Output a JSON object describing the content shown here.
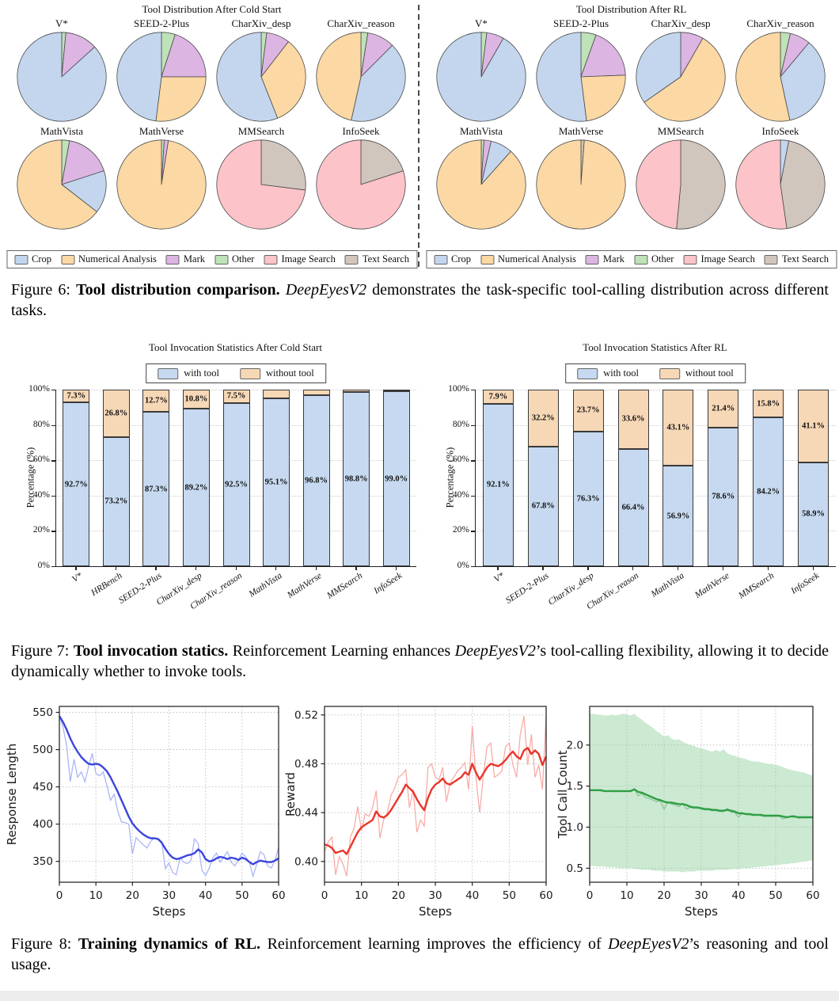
{
  "figure6": {
    "tool_colors": {
      "Crop": "#c3d6ee",
      "Numerical Analysis": "#fbd8a4",
      "Mark": "#dcb5e2",
      "Other": "#bfe2b9",
      "Image Search": "#fcc3c9",
      "Text Search": "#d0c6be"
    },
    "legend": [
      "Crop",
      "Numerical Analysis",
      "Mark",
      "Other",
      "Image Search",
      "Text Search"
    ],
    "panels": [
      {
        "title": "Tool Distribution After Cold Start",
        "pies": [
          {
            "name": "V*",
            "slices": [
              [
                "Other",
                1.5
              ],
              [
                "Mark",
                11.8
              ],
              [
                "Crop",
                86.7
              ]
            ]
          },
          {
            "name": "SEED-2-Plus",
            "slices": [
              [
                "Other",
                5
              ],
              [
                "Mark",
                20
              ],
              [
                "Numerical Analysis",
                27
              ],
              [
                "Crop",
                48
              ]
            ]
          },
          {
            "name": "CharXiv_desp",
            "slices": [
              [
                "Other",
                2
              ],
              [
                "Mark",
                8.5
              ],
              [
                "Numerical Analysis",
                33.5
              ],
              [
                "Crop",
                56
              ]
            ]
          },
          {
            "name": "CharXiv_reason",
            "slices": [
              [
                "Other",
                2.5
              ],
              [
                "Mark",
                10
              ],
              [
                "Crop",
                41
              ],
              [
                "Numerical Analysis",
                46.5
              ]
            ]
          },
          {
            "name": "MathVista",
            "slices": [
              [
                "Other",
                2.8
              ],
              [
                "Mark",
                17.2
              ],
              [
                "Crop",
                15.5
              ],
              [
                "Numerical Analysis",
                64.5
              ]
            ]
          },
          {
            "name": "MathVerse",
            "slices": [
              [
                "Other",
                1
              ],
              [
                "Mark",
                1.5
              ],
              [
                "Numerical Analysis",
                97.5
              ]
            ]
          },
          {
            "name": "MMSearch",
            "slices": [
              [
                "Text Search",
                27
              ],
              [
                "Image Search",
                73
              ]
            ]
          },
          {
            "name": "InfoSeek",
            "slices": [
              [
                "Text Search",
                20
              ],
              [
                "Image Search",
                80
              ]
            ]
          }
        ]
      },
      {
        "title": "Tool Distribution After RL",
        "pies": [
          {
            "name": "V*",
            "slices": [
              [
                "Other",
                2
              ],
              [
                "Mark",
                6.3
              ],
              [
                "Crop",
                91.7
              ]
            ]
          },
          {
            "name": "SEED-2-Plus",
            "slices": [
              [
                "Other",
                5.5
              ],
              [
                "Mark",
                18.9
              ],
              [
                "Numerical Analysis",
                23.6
              ],
              [
                "Crop",
                52
              ]
            ]
          },
          {
            "name": "CharXiv_desp",
            "slices": [
              [
                "Mark",
                8.3
              ],
              [
                "Numerical Analysis",
                57
              ],
              [
                "Crop",
                34.7
              ]
            ]
          },
          {
            "name": "CharXiv_reason",
            "slices": [
              [
                "Other",
                3.6
              ],
              [
                "Mark",
                7.5
              ],
              [
                "Crop",
                35.5
              ],
              [
                "Numerical Analysis",
                53.4
              ]
            ]
          },
          {
            "name": "MathVista",
            "slices": [
              [
                "Other",
                1
              ],
              [
                "Mark",
                2.6
              ],
              [
                "Crop",
                8
              ],
              [
                "Numerical Analysis",
                88.4
              ]
            ]
          },
          {
            "name": "MathVerse",
            "slices": [
              [
                "Text Search",
                1.2
              ],
              [
                "Numerical Analysis",
                98.8
              ]
            ]
          },
          {
            "name": "MMSearch",
            "slices": [
              [
                "Text Search",
                51.5
              ],
              [
                "Image Search",
                48.5
              ]
            ]
          },
          {
            "name": "InfoSeek",
            "slices": [
              [
                "Crop",
                3
              ],
              [
                "Text Search",
                44.7
              ],
              [
                "Image Search",
                52.3
              ]
            ]
          }
        ]
      }
    ]
  },
  "caption6": {
    "parts": [
      {
        "t": "Figure 6: "
      },
      {
        "t": "Tool distribution comparison. ",
        "s": "b"
      },
      {
        "t": "DeepEyesV2",
        "s": "i"
      },
      {
        "t": " demonstrates the task-specific tool-calling distribution across different tasks."
      }
    ]
  },
  "figure7": {
    "ylabel": "Percentage (%)",
    "yticks": [
      "0%",
      "20%",
      "40%",
      "60%",
      "80%",
      "100%"
    ],
    "ytick_values": [
      0,
      20,
      40,
      60,
      80,
      100
    ],
    "legend": [
      {
        "label": "with tool",
        "color": "#c6d9f0"
      },
      {
        "label": "without tool",
        "color": "#f6d7b6"
      }
    ],
    "charts": [
      {
        "title": "Tool Invocation Statistics After Cold Start",
        "categories": [
          "V*",
          "HRBench",
          "SEED-2-Plus",
          "CharXiv_desp",
          "CharXiv_reason",
          "MathVista",
          "MathVerse",
          "MMSearch",
          "InfoSeek"
        ],
        "with_tool": [
          92.7,
          73.2,
          87.3,
          89.2,
          92.5,
          95.1,
          96.8,
          98.8,
          99.0
        ],
        "without_tool": [
          7.3,
          26.8,
          12.7,
          10.8,
          7.5,
          4.9,
          3.2,
          1.2,
          1.0
        ],
        "with_labels": [
          "92.7%",
          "73.2%",
          "87.3%",
          "89.2%",
          "92.5%",
          "95.1%",
          "96.8%",
          "98.8%",
          "99.0%"
        ],
        "without_labels": [
          "7.3%",
          "26.8%",
          "12.7%",
          "10.8%",
          "7.5%",
          "",
          "",
          "",
          ""
        ]
      },
      {
        "title": "Tool Invocation Statistics After RL",
        "categories": [
          "V*",
          "SEED-2-Plus",
          "CharXiv_desp",
          "CharXiv_reason",
          "MathVista",
          "MathVerse",
          "MMSearch",
          "InfoSeek"
        ],
        "with_tool": [
          92.1,
          67.8,
          76.3,
          66.4,
          56.9,
          78.6,
          84.2,
          58.9
        ],
        "without_tool": [
          7.9,
          32.2,
          23.7,
          33.6,
          43.1,
          21.4,
          15.8,
          41.1
        ],
        "with_labels": [
          "92.1%",
          "67.8%",
          "76.3%",
          "66.4%",
          "56.9%",
          "78.6%",
          "84.2%",
          "58.9%"
        ],
        "without_labels": [
          "7.9%",
          "32.2%",
          "23.7%",
          "33.6%",
          "43.1%",
          "21.4%",
          "15.8%",
          "41.1%"
        ]
      }
    ]
  },
  "caption7": {
    "parts": [
      {
        "t": "Figure 7: "
      },
      {
        "t": "Tool invocation statics. ",
        "s": "b"
      },
      {
        "t": "Reinforcement Learning enhances "
      },
      {
        "t": "DeepEyesV2",
        "s": "i"
      },
      {
        "t": "’s tool-calling flexibility, allowing it to decide dynamically whether to invoke tools."
      }
    ]
  },
  "figure8": {
    "xlabel": "Steps",
    "charts": [
      {
        "name": "response-length",
        "ylabel": "Response Length",
        "color": "#3b45dd",
        "raw_color": "#aab6f7",
        "ylim": [
          322,
          558
        ],
        "xlim": [
          0,
          60
        ],
        "yticks": [
          350,
          400,
          450,
          500,
          550
        ],
        "ytick_labels": [
          "350",
          "400",
          "450",
          "500",
          "550"
        ],
        "xticks": [
          0,
          10,
          20,
          30,
          40,
          50,
          60
        ],
        "smooth": [
          545,
          537,
          527,
          515,
          505,
          497,
          490,
          485,
          481,
          480,
          481,
          480,
          476,
          471,
          463,
          453,
          443,
          432,
          421,
          410,
          401,
          395,
          390,
          386,
          383,
          381,
          381,
          380,
          375,
          367,
          360,
          355,
          353,
          354,
          356,
          358,
          359,
          361,
          366,
          362,
          353,
          350,
          351,
          354,
          356,
          355,
          353,
          355,
          354,
          352,
          355,
          353,
          349,
          346,
          349,
          351,
          350,
          349,
          349,
          351,
          354
        ],
        "raw": [
          545,
          530,
          505,
          457,
          487,
          463,
          470,
          457,
          477,
          495,
          468,
          465,
          470,
          452,
          432,
          440,
          417,
          403,
          402,
          400,
          360,
          382,
          377,
          372,
          368,
          377,
          381,
          379,
          377,
          340,
          348,
          335,
          332,
          355,
          349,
          347,
          351,
          380,
          374,
          338,
          331,
          341,
          355,
          361,
          349,
          356,
          363,
          349,
          344,
          352,
          361,
          356,
          349,
          330,
          346,
          363,
          359,
          344,
          341,
          351,
          369
        ]
      },
      {
        "name": "reward",
        "ylabel": "Reward",
        "color": "#ea352a",
        "raw_color": "#f8aca7",
        "ylim": [
          0.383,
          0.527
        ],
        "xlim": [
          0,
          60
        ],
        "yticks": [
          0.4,
          0.44,
          0.48,
          0.52
        ],
        "ytick_labels": [
          "0.40",
          "0.44",
          "0.48",
          "0.52"
        ],
        "xticks": [
          0,
          10,
          20,
          30,
          40,
          50,
          60
        ],
        "smooth": [
          0.414,
          0.413,
          0.411,
          0.407,
          0.408,
          0.409,
          0.406,
          0.412,
          0.418,
          0.424,
          0.428,
          0.43,
          0.432,
          0.434,
          0.441,
          0.437,
          0.436,
          0.438,
          0.442,
          0.447,
          0.452,
          0.457,
          0.463,
          0.46,
          0.457,
          0.451,
          0.446,
          0.442,
          0.452,
          0.459,
          0.463,
          0.465,
          0.468,
          0.464,
          0.463,
          0.465,
          0.467,
          0.469,
          0.473,
          0.471,
          0.48,
          0.473,
          0.467,
          0.472,
          0.477,
          0.48,
          0.479,
          0.478,
          0.48,
          0.483,
          0.487,
          0.49,
          0.486,
          0.484,
          0.491,
          0.493,
          0.488,
          0.491,
          0.488,
          0.479,
          0.486
        ],
        "raw": [
          0.408,
          0.416,
          0.42,
          0.389,
          0.404,
          0.398,
          0.388,
          0.42,
          0.427,
          0.445,
          0.425,
          0.439,
          0.437,
          0.444,
          0.458,
          0.419,
          0.434,
          0.44,
          0.454,
          0.46,
          0.469,
          0.471,
          0.475,
          0.444,
          0.459,
          0.424,
          0.434,
          0.429,
          0.477,
          0.48,
          0.469,
          0.467,
          0.477,
          0.449,
          0.464,
          0.469,
          0.474,
          0.477,
          0.481,
          0.459,
          0.511,
          0.469,
          0.44,
          0.47,
          0.494,
          0.497,
          0.469,
          0.471,
          0.474,
          0.494,
          0.497,
          0.479,
          0.469,
          0.504,
          0.519,
          0.479,
          0.504,
          0.469,
          0.479,
          0.459,
          0.519
        ]
      },
      {
        "name": "tool-call-count",
        "ylabel": "Tool Call Count",
        "color": "#2f9e45",
        "raw_color": "#8cc799",
        "band_color": "#8fcf9b",
        "ylim": [
          0.33,
          2.47
        ],
        "xlim": [
          0,
          60
        ],
        "yticks": [
          0.5,
          1.0,
          1.5,
          2.0
        ],
        "ytick_labels": [
          "0.5",
          "1.0",
          "1.5",
          "2.0"
        ],
        "xticks": [
          0,
          10,
          20,
          30,
          40,
          50,
          60
        ],
        "smooth": [
          1.45,
          1.45,
          1.45,
          1.45,
          1.44,
          1.44,
          1.44,
          1.44,
          1.44,
          1.44,
          1.44,
          1.44,
          1.46,
          1.43,
          1.42,
          1.4,
          1.38,
          1.36,
          1.34,
          1.33,
          1.31,
          1.3,
          1.3,
          1.29,
          1.28,
          1.28,
          1.27,
          1.25,
          1.24,
          1.24,
          1.23,
          1.22,
          1.22,
          1.21,
          1.21,
          1.2,
          1.2,
          1.21,
          1.2,
          1.19,
          1.17,
          1.17,
          1.16,
          1.16,
          1.15,
          1.15,
          1.15,
          1.14,
          1.14,
          1.14,
          1.14,
          1.14,
          1.13,
          1.12,
          1.13,
          1.13,
          1.12,
          1.12,
          1.12,
          1.12,
          1.12
        ],
        "raw": [
          1.45,
          1.45,
          1.45,
          1.44,
          1.44,
          1.44,
          1.44,
          1.43,
          1.44,
          1.44,
          1.44,
          1.43,
          1.47,
          1.38,
          1.41,
          1.36,
          1.35,
          1.33,
          1.31,
          1.32,
          1.22,
          1.31,
          1.28,
          1.27,
          1.25,
          1.29,
          1.22,
          1.24,
          1.23,
          1.23,
          1.22,
          1.21,
          1.21,
          1.2,
          1.2,
          1.19,
          1.19,
          1.23,
          1.18,
          1.18,
          1.12,
          1.17,
          1.15,
          1.15,
          1.14,
          1.15,
          1.14,
          1.13,
          1.14,
          1.13,
          1.14,
          1.13,
          1.1,
          1.12,
          1.13,
          1.14,
          1.11,
          1.12,
          1.11,
          1.12,
          1.13
        ],
        "band_upper": [
          2.38,
          2.38,
          2.37,
          2.37,
          2.36,
          2.36,
          2.37,
          2.36,
          2.37,
          2.38,
          2.37,
          2.36,
          2.38,
          2.34,
          2.31,
          2.27,
          2.24,
          2.21,
          2.17,
          2.14,
          2.1,
          2.12,
          2.08,
          2.06,
          2.07,
          2.04,
          2.02,
          2.0,
          1.99,
          1.97,
          1.96,
          1.95,
          1.93,
          1.92,
          1.94,
          1.92,
          1.95,
          1.9,
          1.88,
          1.87,
          1.85,
          1.84,
          1.83,
          1.81,
          1.8,
          1.8,
          1.79,
          1.78,
          1.77,
          1.77,
          1.76,
          1.75,
          1.73,
          1.71,
          1.7,
          1.69,
          1.68,
          1.67,
          1.66,
          1.64,
          1.63
        ],
        "band_lower": [
          0.53,
          0.53,
          0.52,
          0.52,
          0.52,
          0.51,
          0.51,
          0.51,
          0.5,
          0.5,
          0.5,
          0.5,
          0.49,
          0.49,
          0.48,
          0.48,
          0.48,
          0.47,
          0.47,
          0.47,
          0.46,
          0.46,
          0.46,
          0.46,
          0.46,
          0.45,
          0.46,
          0.46,
          0.46,
          0.47,
          0.47,
          0.47,
          0.47,
          0.47,
          0.48,
          0.48,
          0.48,
          0.48,
          0.49,
          0.49,
          0.49,
          0.5,
          0.5,
          0.5,
          0.51,
          0.51,
          0.52,
          0.52,
          0.53,
          0.53,
          0.54,
          0.54,
          0.55,
          0.55,
          0.56,
          0.56,
          0.57,
          0.58,
          0.58,
          0.59,
          0.6
        ]
      }
    ]
  },
  "caption8": {
    "parts": [
      {
        "t": "Figure 8: "
      },
      {
        "t": "Training dynamics of RL. ",
        "s": "b"
      },
      {
        "t": "Reinforcement learning improves the efficiency of "
      },
      {
        "t": "DeepEyesV2",
        "s": "i"
      },
      {
        "t": "’s reasoning and tool usage."
      }
    ]
  }
}
